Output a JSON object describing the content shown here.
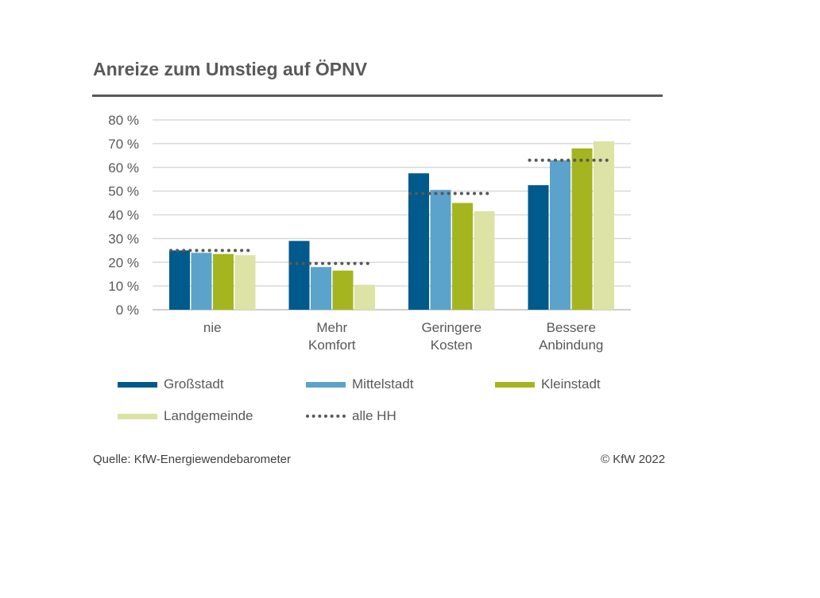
{
  "title": "Anreize zum Umstieg auf ÖPNV",
  "source": "Quelle: KfW-Energiewendebarometer",
  "copyright": "© KfW 2022",
  "chart_data": {
    "type": "bar",
    "categories": [
      [
        "nie"
      ],
      [
        "Mehr",
        "Komfort"
      ],
      [
        "Geringere",
        "Kosten"
      ],
      [
        "Bessere",
        "Anbindung"
      ]
    ],
    "series": [
      {
        "name": "Großstadt",
        "color": "#005A8C",
        "values": [
          25,
          29,
          57.5,
          52.5
        ]
      },
      {
        "name": "Mittelstadt",
        "color": "#5BA3CB",
        "values": [
          24,
          18,
          50.5,
          63
        ]
      },
      {
        "name": "Kleinstadt",
        "color": "#A4B520",
        "values": [
          23.5,
          16.5,
          45,
          68
        ]
      },
      {
        "name": "Landgemeinde",
        "color": "#DCE3A5",
        "values": [
          23,
          10.5,
          41.5,
          71
        ]
      }
    ],
    "reference": {
      "name": "alle HH",
      "style": "dotted",
      "color": "#595959",
      "values": [
        25,
        19.5,
        49,
        63
      ]
    },
    "y_ticks": [
      "0 %",
      "10 %",
      "20 %",
      "30 %",
      "40 %",
      "50 %",
      "60 %",
      "70 %",
      "80 %"
    ],
    "ylim": [
      0,
      80
    ],
    "grid": true,
    "legend_position": "bottom"
  }
}
